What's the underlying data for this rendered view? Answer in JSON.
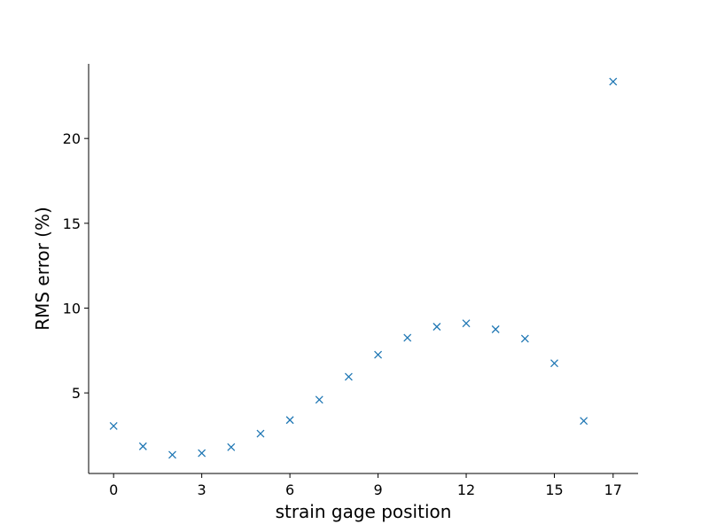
{
  "chart_data": {
    "type": "scatter",
    "title": "",
    "xlabel": "strain gage position",
    "ylabel": "RMS error (%)",
    "x_ticks": [
      0,
      3,
      6,
      9,
      12,
      15,
      17
    ],
    "y_ticks": [
      5,
      10,
      15,
      20
    ],
    "xlim": [
      -0.85,
      17.85
    ],
    "ylim": [
      0.25,
      24.4
    ],
    "marker": "x",
    "color": "#1f77b4",
    "grid": false,
    "series": [
      {
        "x": [
          0,
          1,
          2,
          3,
          4,
          5,
          6,
          7,
          8,
          9,
          10,
          11,
          12,
          13,
          14,
          15,
          16,
          17
        ],
        "y": [
          3.05,
          1.85,
          1.35,
          1.45,
          1.8,
          2.6,
          3.4,
          4.6,
          5.95,
          7.25,
          8.25,
          8.9,
          9.1,
          8.75,
          8.2,
          6.75,
          3.35,
          23.35
        ]
      }
    ]
  }
}
